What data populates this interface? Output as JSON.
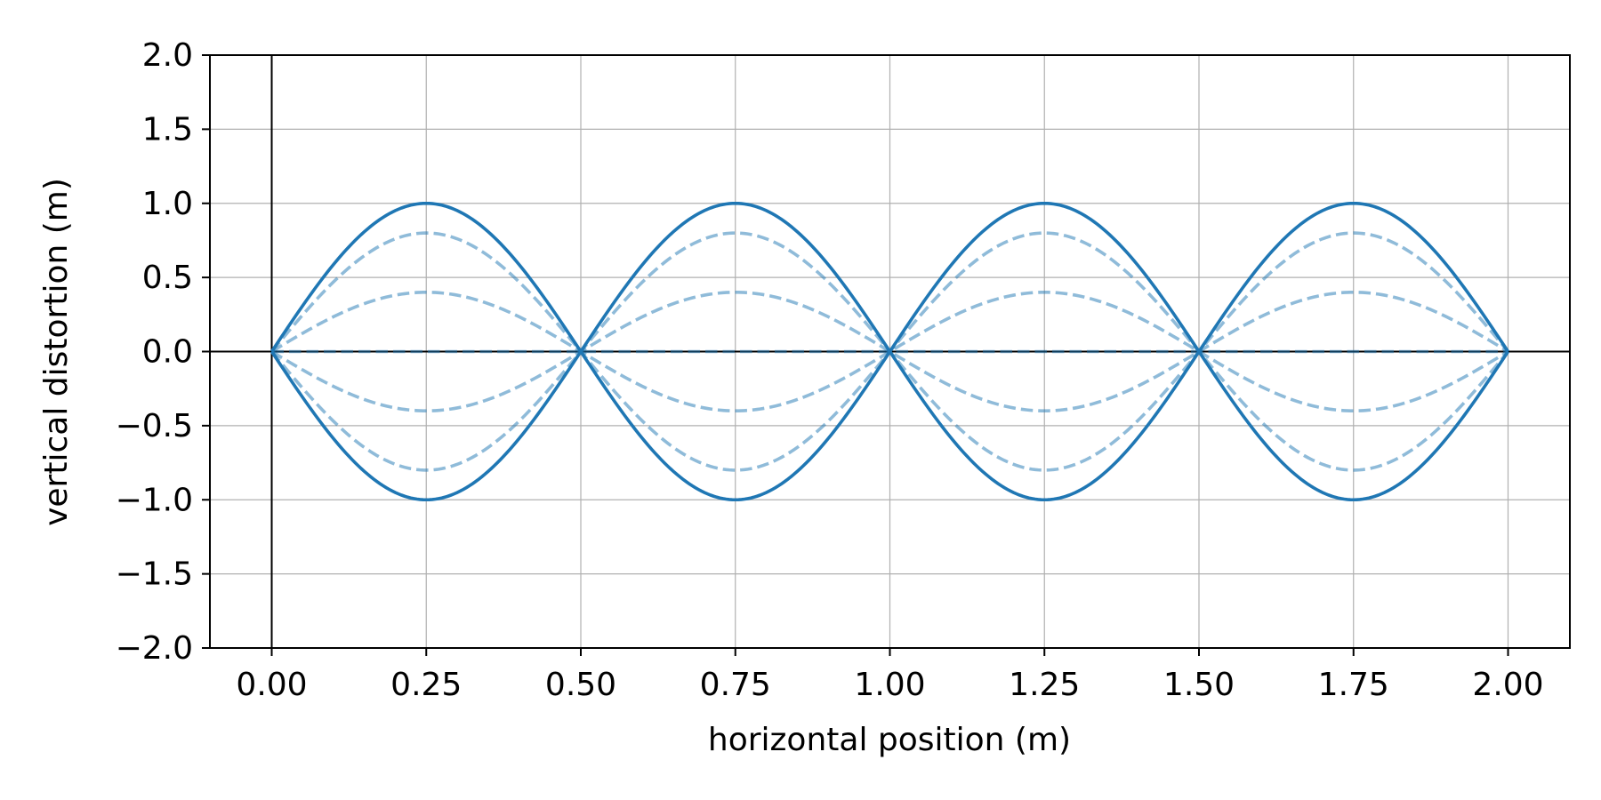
{
  "chart_data": {
    "type": "line",
    "title": "",
    "xlabel": "horizontal position (m)",
    "ylabel": "vertical distortion (m)",
    "xlim": [
      -0.1,
      2.1
    ],
    "ylim": [
      -2.0,
      2.0
    ],
    "xticks": [
      0.0,
      0.25,
      0.5,
      0.75,
      1.0,
      1.25,
      1.5,
      1.75,
      2.0
    ],
    "xtick_labels": [
      "0.00",
      "0.25",
      "0.50",
      "0.75",
      "1.00",
      "1.25",
      "1.50",
      "1.75",
      "2.00"
    ],
    "yticks": [
      -2.0,
      -1.5,
      -1.0,
      -0.5,
      0.0,
      0.5,
      1.0,
      1.5,
      2.0
    ],
    "ytick_labels": [
      "−2.0",
      "−1.5",
      "−1.0",
      "−0.5",
      "0.0",
      "0.5",
      "1.0",
      "1.5",
      "2.0"
    ],
    "grid": true,
    "reference_lines": {
      "x": 0.0,
      "y": 0.0
    },
    "x_range": [
      0.0,
      2.0
    ],
    "wavelength": 1.0,
    "function": "amplitude * sin(2πx / wavelength)",
    "series": [
      {
        "amplitude": 1.0,
        "style": "solid",
        "color": "#1f77b4",
        "opacity": 1.0
      },
      {
        "amplitude": -1.0,
        "style": "solid",
        "color": "#1f77b4",
        "opacity": 1.0
      },
      {
        "amplitude": 0.8,
        "style": "dashed",
        "color": "#1f77b4",
        "opacity": 0.5
      },
      {
        "amplitude": -0.8,
        "style": "dashed",
        "color": "#1f77b4",
        "opacity": 0.5
      },
      {
        "amplitude": 0.4,
        "style": "dashed",
        "color": "#1f77b4",
        "opacity": 0.5
      },
      {
        "amplitude": -0.4,
        "style": "dashed",
        "color": "#1f77b4",
        "opacity": 0.5
      },
      {
        "amplitude": 0.0,
        "style": "dashed",
        "color": "#1f77b4",
        "opacity": 0.5
      }
    ]
  }
}
